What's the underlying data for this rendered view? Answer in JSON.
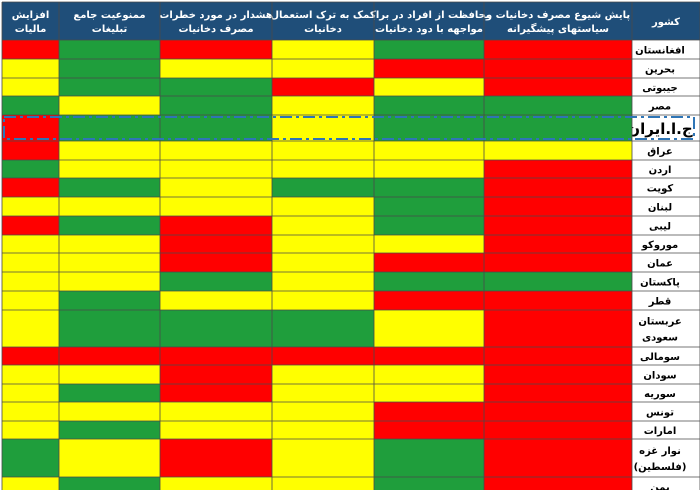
{
  "palette": {
    "red": "#ff0000",
    "yellow": "#ffff00",
    "green": "#1f9e3c",
    "header_bg": "#1f4e79",
    "country_bg": "#ffffff",
    "highlight_stroke": "#2e75b6"
  },
  "chart_data": {
    "type": "table",
    "columns": [
      {
        "key": "country",
        "label_lines": [
          "کشور"
        ]
      },
      {
        "key": "monitor",
        "label_lines": [
          "پایش شیوع مصرف دخانیات و",
          "سیاستهای پیشگیرانه"
        ]
      },
      {
        "key": "protect",
        "label_lines": [
          "محافظت از افراد در برابر",
          "مواجهه با دود دخانیات"
        ]
      },
      {
        "key": "quit",
        "label_lines": [
          "کمک به ترک استعمال",
          "دخانیات"
        ]
      },
      {
        "key": "warn",
        "label_lines": [
          "هشدار در مورد خطرات",
          "مصرف دخانیات"
        ]
      },
      {
        "key": "ban",
        "label_lines": [
          "ممنوعیت جامع",
          "تبلیغات"
        ]
      },
      {
        "key": "tax",
        "label_lines": [
          "افزایش",
          "مالیات"
        ]
      }
    ],
    "rows": [
      {
        "country_lines": [
          "افغانستان"
        ],
        "levels": [
          "red",
          "green",
          "yellow",
          "red",
          "green",
          "red"
        ]
      },
      {
        "country_lines": [
          "بحرین"
        ],
        "levels": [
          "red",
          "red",
          "yellow",
          "yellow",
          "green",
          "yellow"
        ]
      },
      {
        "country_lines": [
          "جیبوتی"
        ],
        "levels": [
          "red",
          "yellow",
          "red",
          "green",
          "green",
          "yellow"
        ]
      },
      {
        "country_lines": [
          "مصر"
        ],
        "levels": [
          "green",
          "green",
          "yellow",
          "green",
          "yellow",
          "green"
        ]
      },
      {
        "country_lines": [
          "ج.ا.ایران"
        ],
        "levels": [
          "green",
          "green",
          "yellow",
          "green",
          "green",
          "red"
        ],
        "highlight": true
      },
      {
        "country_lines": [
          "عراق"
        ],
        "levels": [
          "yellow",
          "yellow",
          "yellow",
          "yellow",
          "yellow",
          "red"
        ]
      },
      {
        "country_lines": [
          "اردن"
        ],
        "levels": [
          "red",
          "yellow",
          "yellow",
          "yellow",
          "yellow",
          "green"
        ]
      },
      {
        "country_lines": [
          "کویت"
        ],
        "levels": [
          "red",
          "green",
          "green",
          "yellow",
          "green",
          "red"
        ]
      },
      {
        "country_lines": [
          "لبنان"
        ],
        "levels": [
          "red",
          "green",
          "yellow",
          "yellow",
          "yellow",
          "yellow"
        ]
      },
      {
        "country_lines": [
          "لیبی"
        ],
        "levels": [
          "red",
          "green",
          "yellow",
          "red",
          "green",
          "red"
        ]
      },
      {
        "country_lines": [
          "موروکو"
        ],
        "levels": [
          "red",
          "yellow",
          "yellow",
          "red",
          "yellow",
          "yellow"
        ]
      },
      {
        "country_lines": [
          "عمان"
        ],
        "levels": [
          "red",
          "red",
          "yellow",
          "red",
          "yellow",
          "yellow"
        ]
      },
      {
        "country_lines": [
          "پاکستان"
        ],
        "levels": [
          "green",
          "green",
          "yellow",
          "green",
          "yellow",
          "yellow"
        ]
      },
      {
        "country_lines": [
          "قطر"
        ],
        "levels": [
          "red",
          "red",
          "yellow",
          "yellow",
          "green",
          "yellow"
        ]
      },
      {
        "country_lines": [
          "عربستان",
          "سعودی"
        ],
        "levels": [
          "red",
          "yellow",
          "green",
          "green",
          "green",
          "yellow"
        ]
      },
      {
        "country_lines": [
          "سومالی"
        ],
        "levels": [
          "red",
          "red",
          "red",
          "red",
          "red",
          "red"
        ]
      },
      {
        "country_lines": [
          "سودان"
        ],
        "levels": [
          "red",
          "yellow",
          "yellow",
          "red",
          "yellow",
          "yellow"
        ]
      },
      {
        "country_lines": [
          "سوریه"
        ],
        "levels": [
          "red",
          "yellow",
          "yellow",
          "red",
          "green",
          "yellow"
        ]
      },
      {
        "country_lines": [
          "تونس"
        ],
        "levels": [
          "red",
          "red",
          "yellow",
          "yellow",
          "yellow",
          "yellow"
        ]
      },
      {
        "country_lines": [
          "امارات"
        ],
        "levels": [
          "red",
          "red",
          "yellow",
          "yellow",
          "green",
          "yellow"
        ]
      },
      {
        "country_lines": [
          "نوار غزه",
          "(فلسطین)"
        ],
        "levels": [
          "red",
          "green",
          "yellow",
          "red",
          "yellow",
          "green"
        ]
      },
      {
        "country_lines": [
          "یمن"
        ],
        "levels": [
          "red",
          "green",
          "yellow",
          "yellow",
          "green",
          "yellow"
        ]
      }
    ]
  }
}
